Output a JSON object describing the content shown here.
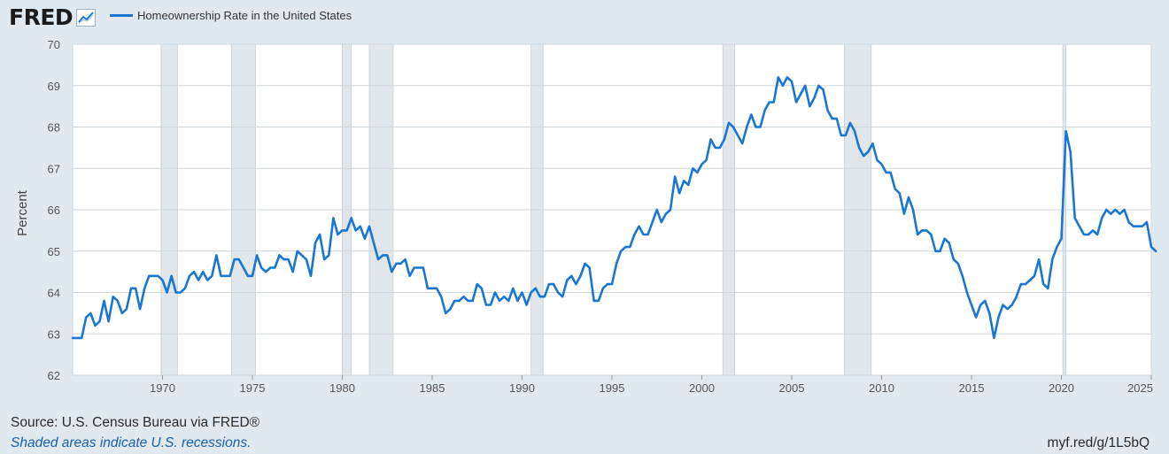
{
  "header": {
    "logo_text": "FRED",
    "logo_icon": "trend-line-icon",
    "legend_label": "Homeownership Rate in the United States"
  },
  "footer": {
    "source": "Source: U.S. Census Bureau via FRED®",
    "recession_note": "Shaded areas indicate U.S. recessions.",
    "short_url": "myf.red/g/1L5bQ"
  },
  "colors": {
    "line": "#1976d2",
    "background": "#e1e9f0",
    "plot": "#ffffff",
    "recession": "#e1e6ea"
  },
  "chart_data": {
    "type": "line",
    "title": "",
    "xlabel": "",
    "ylabel": "Percent",
    "xlim": [
      1965.0,
      2025.0
    ],
    "ylim": [
      62,
      70
    ],
    "yticks": [
      62,
      63,
      64,
      65,
      66,
      67,
      68,
      69,
      70
    ],
    "xticks": [
      1970,
      1975,
      1980,
      1985,
      1990,
      1995,
      2000,
      2005,
      2010,
      2015,
      2020,
      2025
    ],
    "grid": true,
    "legend_position": "top-left",
    "recessions": [
      [
        1969.92,
        1970.83
      ],
      [
        1973.83,
        1975.17
      ],
      [
        1980.0,
        1980.5
      ],
      [
        1981.5,
        1982.83
      ],
      [
        1990.5,
        1991.17
      ],
      [
        2001.17,
        2001.83
      ],
      [
        2007.92,
        2009.42
      ],
      [
        2020.08,
        2020.25
      ]
    ],
    "series": [
      {
        "name": "Homeownership Rate in the United States",
        "start": 1965.0,
        "step": 0.25,
        "values": [
          62.9,
          62.9,
          62.9,
          63.4,
          63.5,
          63.2,
          63.3,
          63.8,
          63.3,
          63.9,
          63.8,
          63.5,
          63.6,
          64.1,
          64.1,
          63.6,
          64.1,
          64.4,
          64.4,
          64.4,
          64.3,
          64.0,
          64.4,
          64.0,
          64.0,
          64.1,
          64.4,
          64.5,
          64.3,
          64.5,
          64.3,
          64.4,
          64.9,
          64.4,
          64.4,
          64.4,
          64.8,
          64.8,
          64.6,
          64.4,
          64.4,
          64.9,
          64.6,
          64.5,
          64.6,
          64.6,
          64.9,
          64.8,
          64.8,
          64.5,
          65.0,
          64.9,
          64.8,
          64.4,
          65.2,
          65.4,
          64.8,
          64.9,
          65.8,
          65.4,
          65.5,
          65.5,
          65.8,
          65.5,
          65.6,
          65.3,
          65.6,
          65.2,
          64.8,
          64.9,
          64.9,
          64.5,
          64.7,
          64.7,
          64.8,
          64.4,
          64.6,
          64.6,
          64.6,
          64.1,
          64.1,
          64.1,
          63.9,
          63.5,
          63.6,
          63.8,
          63.8,
          63.9,
          63.8,
          63.8,
          64.2,
          64.1,
          63.7,
          63.7,
          64.0,
          63.8,
          63.9,
          63.8,
          64.1,
          63.8,
          64.0,
          63.7,
          64.0,
          64.1,
          63.9,
          63.9,
          64.2,
          64.2,
          64.0,
          63.9,
          64.3,
          64.4,
          64.2,
          64.4,
          64.7,
          64.6,
          63.8,
          63.8,
          64.1,
          64.2,
          64.2,
          64.7,
          65.0,
          65.1,
          65.1,
          65.4,
          65.6,
          65.4,
          65.4,
          65.7,
          66.0,
          65.7,
          65.9,
          66.0,
          66.8,
          66.4,
          66.7,
          66.6,
          67.0,
          66.9,
          67.1,
          67.2,
          67.7,
          67.5,
          67.5,
          67.7,
          68.1,
          68.0,
          67.8,
          67.6,
          68.0,
          68.3,
          68.0,
          68.0,
          68.4,
          68.6,
          68.6,
          69.2,
          69.0,
          69.2,
          69.1,
          68.6,
          68.8,
          69.0,
          68.5,
          68.7,
          69.0,
          68.9,
          68.4,
          68.2,
          68.2,
          67.8,
          67.8,
          68.1,
          67.9,
          67.5,
          67.3,
          67.4,
          67.6,
          67.2,
          67.1,
          66.9,
          66.9,
          66.5,
          66.4,
          65.9,
          66.3,
          66.0,
          65.4,
          65.5,
          65.5,
          65.4,
          65.0,
          65.0,
          65.3,
          65.2,
          64.8,
          64.7,
          64.4,
          64.0,
          63.7,
          63.4,
          63.7,
          63.8,
          63.5,
          62.9,
          63.4,
          63.7,
          63.6,
          63.7,
          63.9,
          64.2,
          64.2,
          64.3,
          64.4,
          64.8,
          64.2,
          64.1,
          64.8,
          65.1,
          65.3,
          67.9,
          67.4,
          65.8,
          65.6,
          65.4,
          65.4,
          65.5,
          65.4,
          65.8,
          66.0,
          65.9,
          66.0,
          65.9,
          66.0,
          65.7,
          65.6,
          65.6,
          65.6,
          65.7,
          65.1,
          65.0
        ]
      }
    ]
  }
}
